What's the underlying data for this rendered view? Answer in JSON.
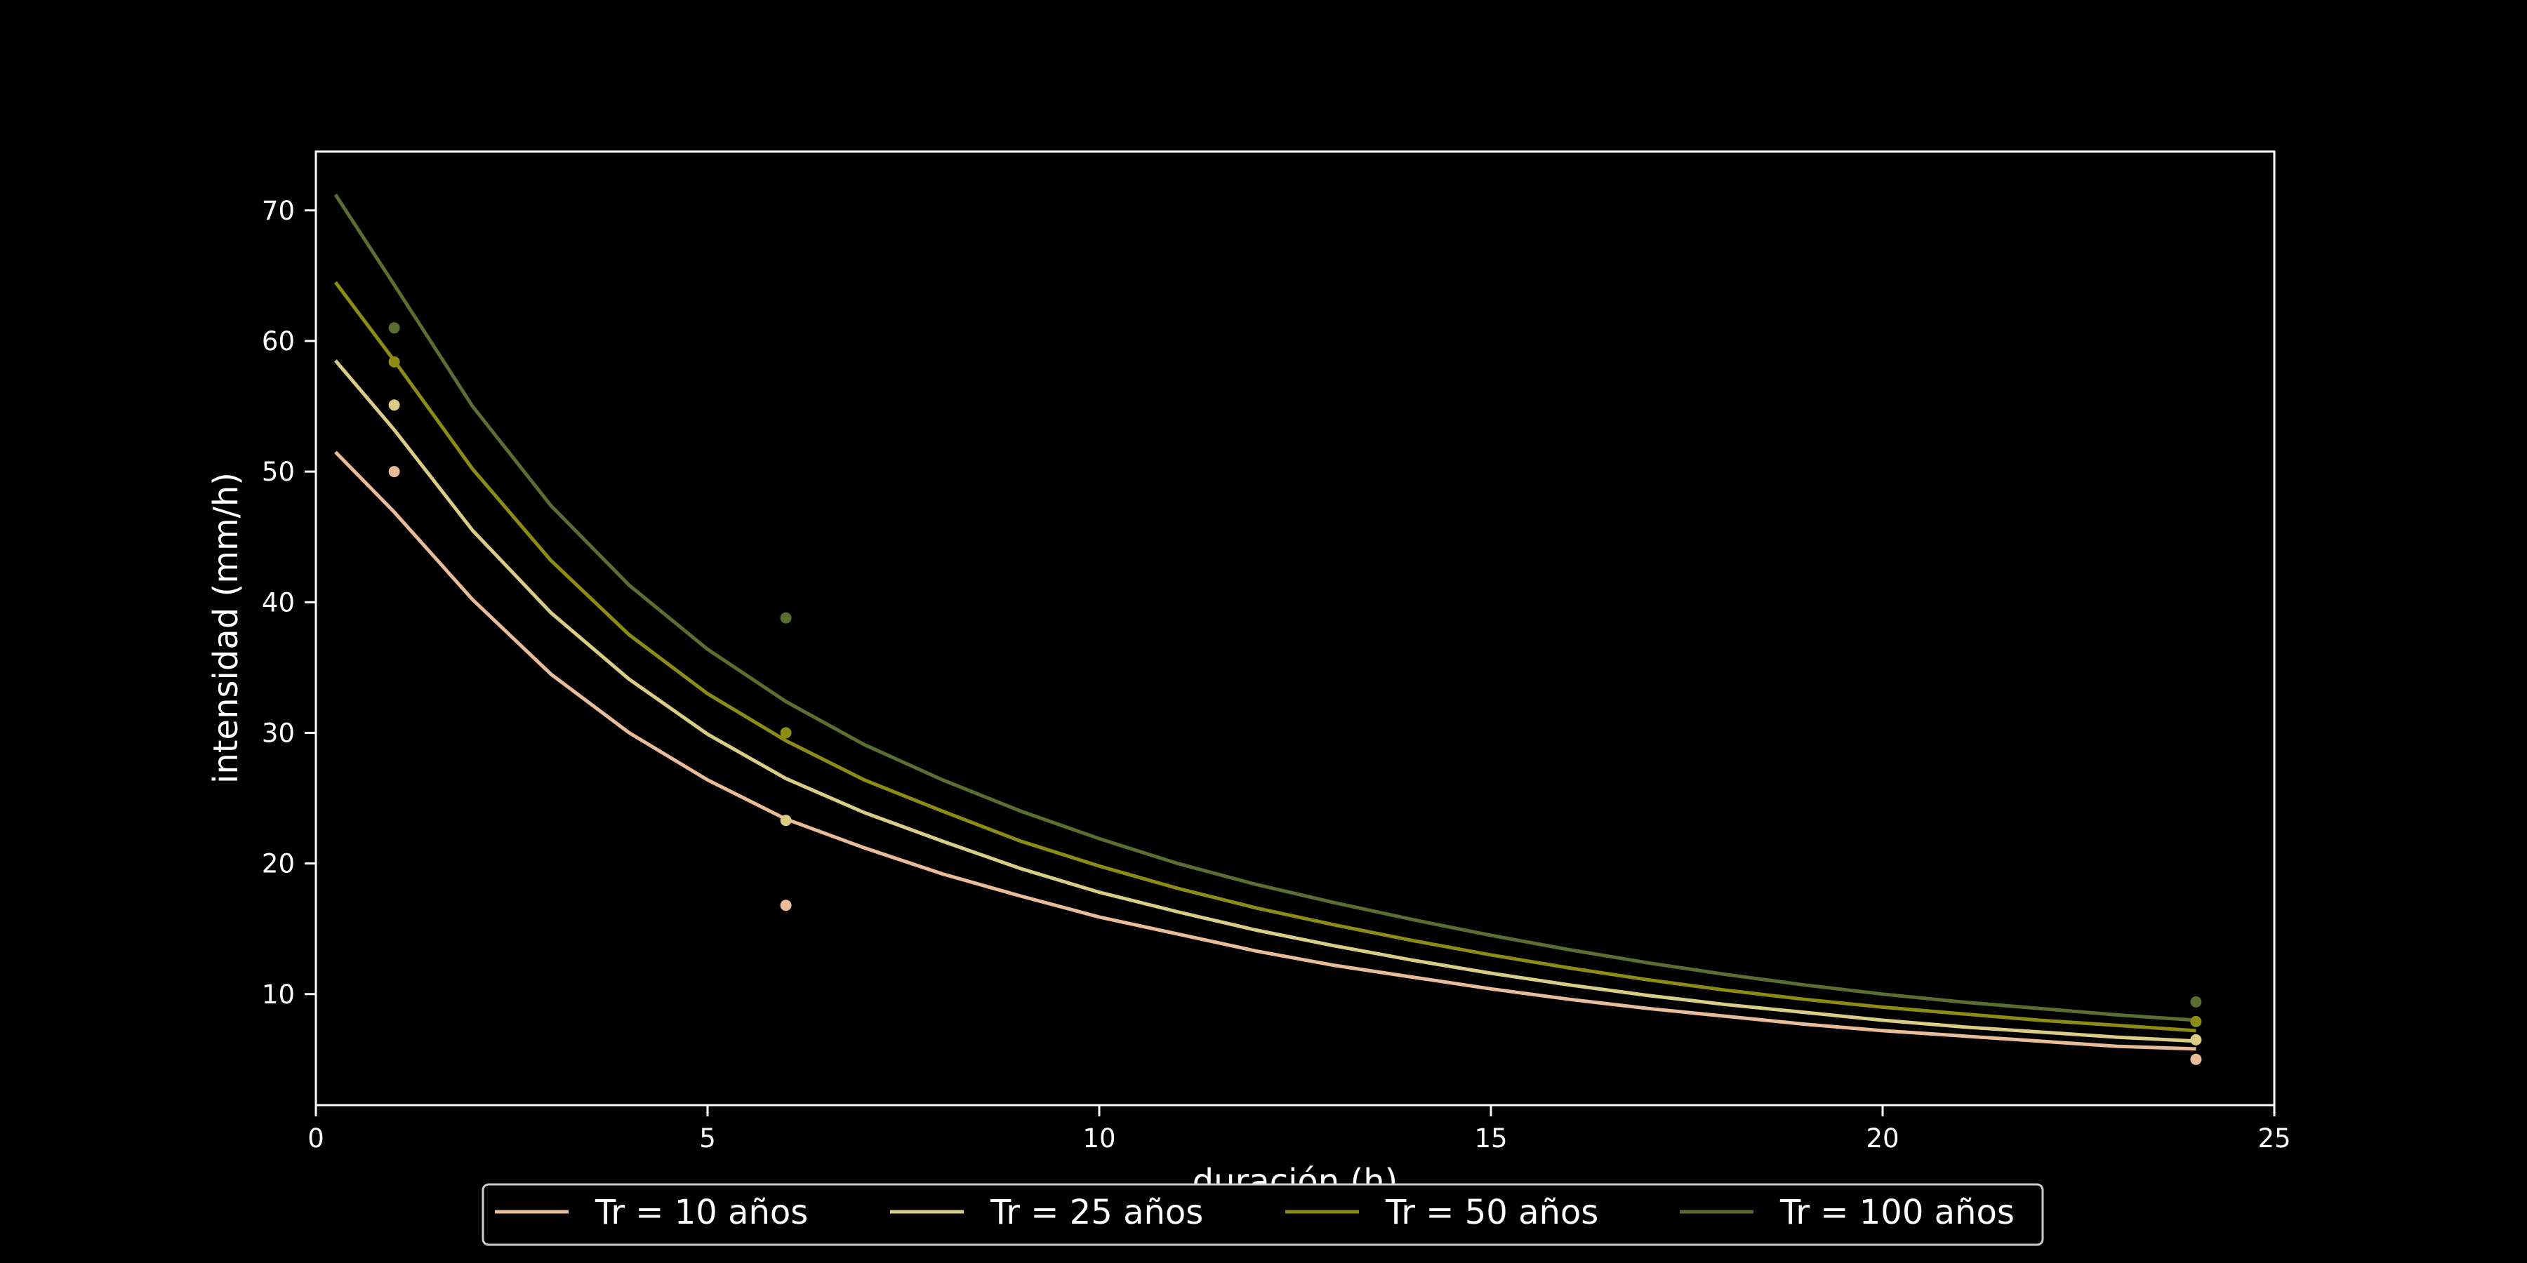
{
  "chart_data": {
    "type": "line",
    "title": "",
    "xlabel": "duración (h)",
    "ylabel": "intensidad (mm/h)",
    "xlim": [
      0,
      25
    ],
    "ylim": [
      1.5,
      74.5
    ],
    "xticks": [
      0,
      5,
      10,
      15,
      20,
      25
    ],
    "yticks": [
      10,
      20,
      30,
      40,
      50,
      60,
      70
    ],
    "grid": false,
    "legend": {
      "placement": "bottom-center",
      "columns": 4
    },
    "colors": {
      "background": "#000000",
      "axes": "#ffffff",
      "legend_frame": "#cccccc",
      "axis_title_x": "#333333"
    },
    "curve_x": [
      0.25,
      1,
      2,
      3,
      4,
      5,
      6,
      7,
      8,
      9,
      10,
      11,
      12,
      13,
      14,
      15,
      16,
      17,
      18,
      19,
      20,
      21,
      22,
      23,
      24
    ],
    "series": [
      {
        "name": "Tr = 10 años",
        "color": "#e8bc98",
        "curve_y": [
          51.5,
          46.9,
          40.2,
          34.5,
          30.0,
          26.4,
          23.4,
          21.2,
          19.2,
          17.5,
          15.9,
          14.6,
          13.3,
          12.2,
          11.3,
          10.4,
          9.6,
          8.9,
          8.3,
          7.7,
          7.2,
          6.8,
          6.4,
          6.0,
          5.8
        ],
        "points_x": [
          1,
          6,
          24
        ],
        "points_y": [
          50.0,
          16.8,
          5.0
        ]
      },
      {
        "name": "Tr = 25 años",
        "color": "#d9cc85",
        "curve_y": [
          58.5,
          53.2,
          45.5,
          39.2,
          34.1,
          29.9,
          26.5,
          23.9,
          21.7,
          19.6,
          17.8,
          16.3,
          14.9,
          13.7,
          12.6,
          11.6,
          10.7,
          9.9,
          9.2,
          8.6,
          8.0,
          7.5,
          7.1,
          6.7,
          6.4
        ],
        "points_x": [
          1,
          6,
          24
        ],
        "points_y": [
          55.1,
          23.3,
          6.5
        ]
      },
      {
        "name": "Tr = 50 años",
        "color": "#8c8c14",
        "curve_y": [
          64.5,
          58.5,
          50.2,
          43.2,
          37.5,
          33.0,
          29.4,
          26.4,
          24.0,
          21.7,
          19.8,
          18.1,
          16.6,
          15.3,
          14.1,
          13.0,
          12.0,
          11.1,
          10.3,
          9.6,
          9.0,
          8.5,
          8.0,
          7.6,
          7.2
        ],
        "points_x": [
          1,
          6,
          24
        ],
        "points_y": [
          58.4,
          30.0,
          7.9
        ]
      },
      {
        "name": "Tr = 100 años",
        "color": "#5a6e32",
        "curve_y": [
          71.2,
          64.3,
          55.0,
          47.4,
          41.3,
          36.4,
          32.4,
          29.1,
          26.4,
          24.0,
          21.9,
          20.0,
          18.4,
          17.0,
          15.7,
          14.5,
          13.4,
          12.4,
          11.5,
          10.7,
          10.0,
          9.4,
          8.9,
          8.4,
          8.0
        ],
        "points_x": [
          1,
          6,
          24
        ],
        "points_y": [
          61.0,
          38.8,
          9.4
        ]
      }
    ]
  }
}
